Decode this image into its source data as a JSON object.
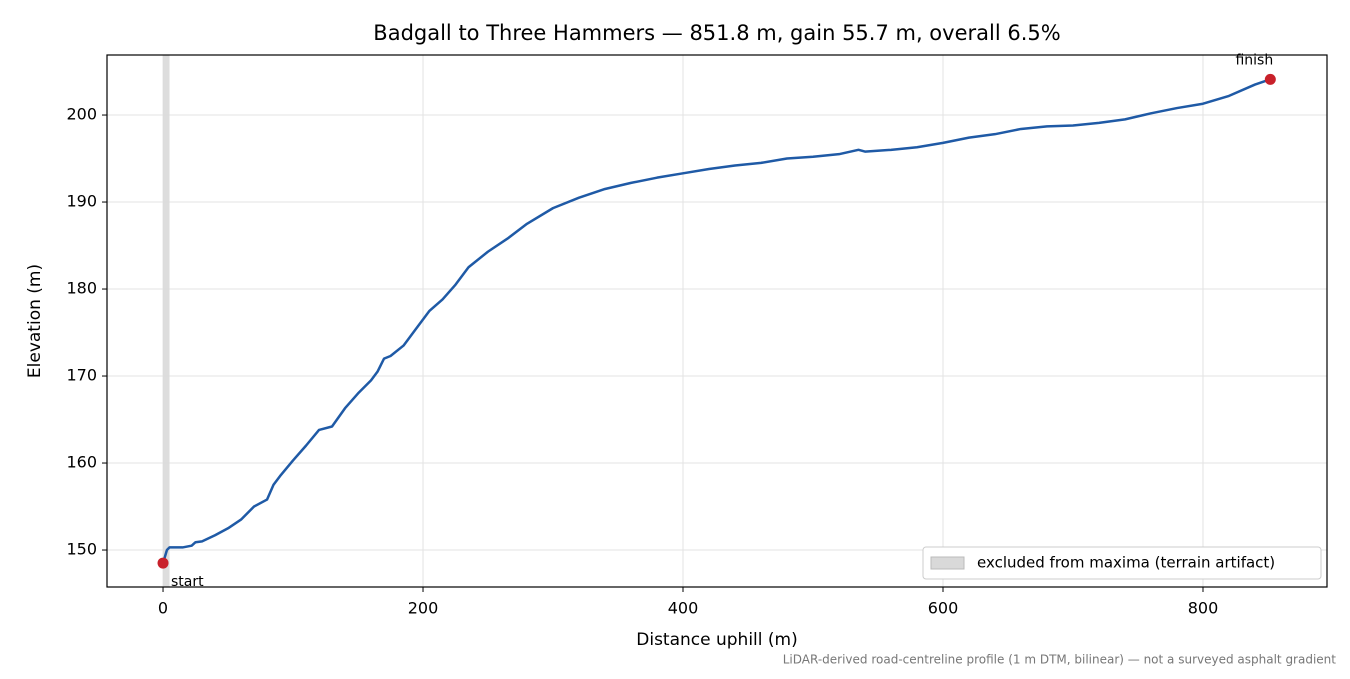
{
  "chart_data": {
    "type": "line",
    "title": "Badgall to Three Hammers — 851.8 m, gain 55.7 m, overall 6.5%",
    "x_label": "Distance uphill (m)",
    "y_label": "Elevation (m)",
    "footnote": "LiDAR-derived road-centreline profile (1 m DTM, bilinear) — not a surveyed asphalt gradient",
    "x": [
      0,
      3,
      5,
      15,
      22,
      25,
      30,
      40,
      50,
      60,
      70,
      80,
      85,
      90,
      100,
      110,
      120,
      130,
      140,
      150,
      160,
      165,
      170,
      175,
      185,
      195,
      205,
      215,
      225,
      235,
      250,
      265,
      280,
      300,
      320,
      340,
      360,
      380,
      400,
      420,
      440,
      460,
      480,
      500,
      520,
      535,
      540,
      560,
      580,
      600,
      620,
      640,
      660,
      680,
      700,
      720,
      740,
      760,
      780,
      800,
      820,
      840,
      851.8
    ],
    "values": [
      148.5,
      150.0,
      150.3,
      150.3,
      150.5,
      150.9,
      151.0,
      151.7,
      152.5,
      153.5,
      155.0,
      155.8,
      157.5,
      158.5,
      160.3,
      162.0,
      163.8,
      164.2,
      166.3,
      168.0,
      169.5,
      170.5,
      172.0,
      172.3,
      173.5,
      175.5,
      177.5,
      178.8,
      180.5,
      182.5,
      184.3,
      185.8,
      187.5,
      189.3,
      190.5,
      191.5,
      192.2,
      192.8,
      193.3,
      193.8,
      194.2,
      194.5,
      195.0,
      195.2,
      195.5,
      196.0,
      195.8,
      196.0,
      196.3,
      196.8,
      197.4,
      197.8,
      198.4,
      198.7,
      198.8,
      199.1,
      199.5,
      200.2,
      200.8,
      201.3,
      202.2,
      203.5,
      204.1
    ],
    "color": "#1f5aa6",
    "markers": [
      {
        "label": "start",
        "x": 0,
        "y": 148.5
      },
      {
        "label": "finish",
        "x": 851.8,
        "y": 204.1
      }
    ],
    "marker_color": "#c8202a",
    "excluded_span": [
      0,
      5
    ],
    "excluded_label": "excluded from maxima (terrain artifact)",
    "excluded_color": "#d9d9d9",
    "xlim": [
      -43.1,
      895.4
    ],
    "xticks": [
      0,
      200,
      400,
      600,
      800
    ],
    "ylim": [
      145.75,
      206.9
    ],
    "yticks": [
      150,
      160,
      170,
      180,
      190,
      200
    ],
    "grid": true,
    "legend": "lower right"
  }
}
